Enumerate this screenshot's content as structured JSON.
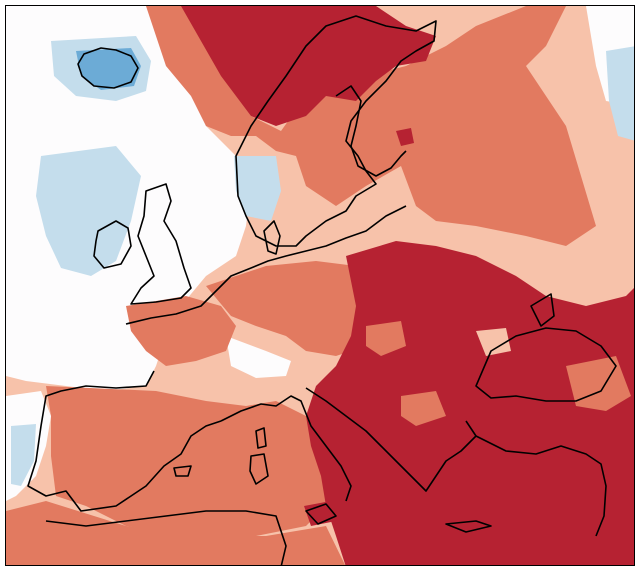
{
  "map": {
    "type": "anomaly-heatmap",
    "region": "Europe",
    "colors": {
      "ocean_background": "#fdfcfd",
      "strong_warm": "#b62232",
      "warm": "#e27a60",
      "mild_warm": "#f7c2aa",
      "near_zero": "#fdfcfd",
      "mild_cool": "#c4ddec",
      "cool": "#6cabd6",
      "coastline": "#000000"
    }
  }
}
